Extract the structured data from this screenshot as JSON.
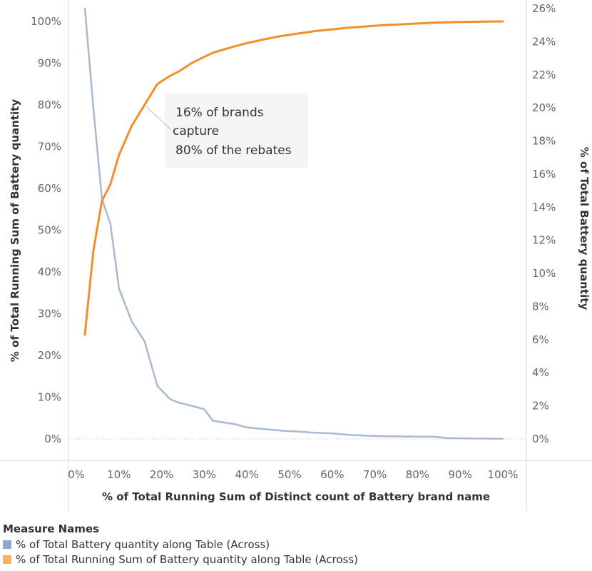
{
  "chart_data": {
    "type": "line",
    "x": [
      0.02,
      0.04,
      0.06,
      0.08,
      0.1,
      0.13,
      0.16,
      0.19,
      0.22,
      0.24,
      0.27,
      0.3,
      0.32,
      0.37,
      0.4,
      0.44,
      0.48,
      0.52,
      0.56,
      0.6,
      0.64,
      0.68,
      0.72,
      0.76,
      0.8,
      0.84,
      0.87,
      0.92,
      0.96,
      1.0
    ],
    "xlabel": "% of Total Running Sum of Distinct count of Battery brand name",
    "x_ticks": [
      "0%",
      "10%",
      "20%",
      "30%",
      "40%",
      "50%",
      "60%",
      "70%",
      "80%",
      "90%",
      "100%"
    ],
    "xlim": [
      0,
      1
    ],
    "y_left": {
      "label": "% of Total Running Sum of Battery quantity",
      "ticks": [
        "0%",
        "10%",
        "20%",
        "30%",
        "40%",
        "50%",
        "60%",
        "70%",
        "80%",
        "90%",
        "100%"
      ],
      "ylim": [
        0,
        1
      ]
    },
    "y_right": {
      "label": "% of Total Battery quantity",
      "ticks": [
        "0%",
        "2%",
        "4%",
        "6%",
        "8%",
        "10%",
        "12%",
        "14%",
        "16%",
        "18%",
        "20%",
        "22%",
        "24%",
        "26%"
      ],
      "ylim": [
        0,
        0.26
      ]
    },
    "series": [
      {
        "name": "% of Total Battery quantity along Table (Across)",
        "axis": "right",
        "color": "#a7bad2",
        "values": [
          0.26,
          0.2,
          0.145,
          0.13,
          0.091,
          0.071,
          0.059,
          0.032,
          0.024,
          0.022,
          0.02,
          0.018,
          0.011,
          0.009,
          0.007,
          0.006,
          0.005,
          0.0045,
          0.0038,
          0.0033,
          0.0025,
          0.002,
          0.0017,
          0.0015,
          0.0014,
          0.0013,
          0.0005,
          0.0003,
          0.0002,
          0.0001
        ]
      },
      {
        "name": "% of Total Running Sum of Battery quantity along Table (Across)",
        "axis": "left",
        "color": "#f28e2b",
        "values": [
          0.25,
          0.45,
          0.57,
          0.61,
          0.68,
          0.75,
          0.8,
          0.85,
          0.87,
          0.88,
          0.9,
          0.915,
          0.925,
          0.94,
          0.948,
          0.957,
          0.965,
          0.971,
          0.977,
          0.981,
          0.985,
          0.988,
          0.991,
          0.993,
          0.995,
          0.997,
          0.998,
          0.999,
          0.9995,
          1.0
        ]
      }
    ],
    "annotation": {
      "lines": [
        "16% of brands",
        "capture",
        "80% of the rebates"
      ],
      "points_to": {
        "x": 0.16,
        "y": 0.8
      }
    },
    "legend": {
      "title": "Measure Names",
      "placement": "bottom-left"
    },
    "grid": false
  }
}
